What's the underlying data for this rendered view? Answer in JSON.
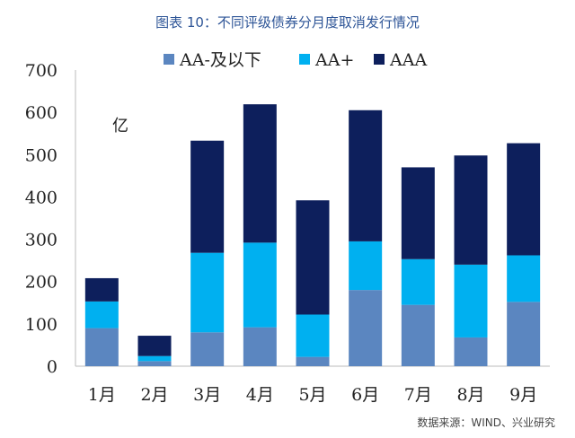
{
  "header": {
    "title": "图表 10：不同评级债券分月度取消发行情况"
  },
  "footer": {
    "source": "数据来源：WIND、兴业研究"
  },
  "colors": {
    "AA-及以下": "#5b86c0",
    "AA+": "#00b0f0",
    "AAA": "#0d1f5c"
  },
  "chart_data": {
    "type": "bar",
    "stacked": true,
    "title": "",
    "ylabel": "亿",
    "xlabel": "",
    "ylim": [
      0,
      700
    ],
    "yticks": [
      0,
      100,
      200,
      300,
      400,
      500,
      600,
      700
    ],
    "categories": [
      "1月",
      "2月",
      "3月",
      "4月",
      "5月",
      "6月",
      "7月",
      "8月",
      "9月"
    ],
    "legend_position": "top",
    "grid": false,
    "series": [
      {
        "name": "AA-及以下",
        "values": [
          90,
          12,
          80,
          92,
          22,
          180,
          145,
          68,
          152
        ]
      },
      {
        "name": "AA+",
        "values": [
          63,
          12,
          188,
          200,
          100,
          115,
          108,
          172,
          110
        ]
      },
      {
        "name": "AAA",
        "values": [
          55,
          48,
          265,
          327,
          270,
          310,
          217,
          258,
          265
        ]
      }
    ]
  }
}
